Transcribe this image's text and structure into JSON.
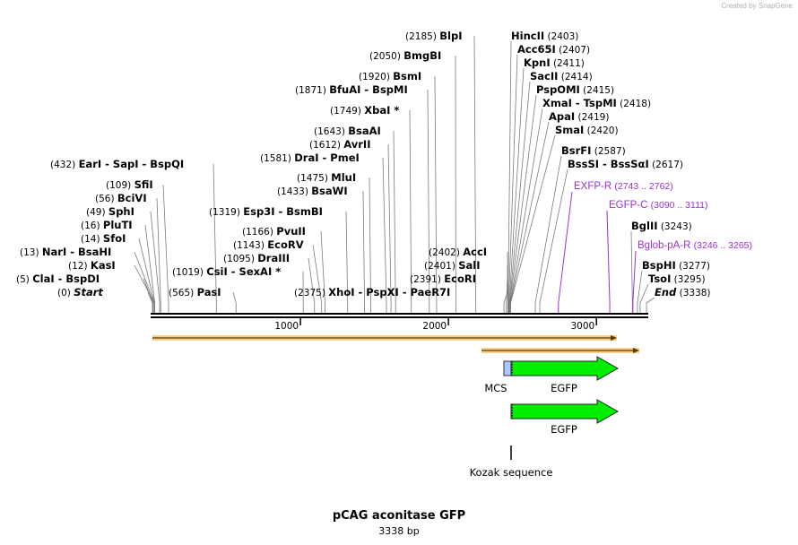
{
  "credit": "Created by SnapGene",
  "title": "pCAG aconitase GFP",
  "length_label": "3338 bp",
  "total_bp": 3338,
  "colors": {
    "feature": "#00ee00",
    "mcs": "#a8c8ff",
    "orf": "#f4a72a",
    "primer": "#9b30d0",
    "axis": "#000000"
  },
  "ticks": [
    {
      "bp": 1000,
      "label": "1000"
    },
    {
      "bp": 2000,
      "label": "2000"
    },
    {
      "bp": 3000,
      "label": "3000"
    }
  ],
  "sites_left": [
    {
      "pos": "(0)",
      "names": [
        "Start"
      ],
      "italic": true,
      "bp": 0
    },
    {
      "pos": "(5)",
      "names": [
        "ClaI",
        "BspDI"
      ],
      "bp": 5
    },
    {
      "pos": "(12)",
      "names": [
        "KasI"
      ],
      "bp": 12
    },
    {
      "pos": "(13)",
      "names": [
        "NarI",
        "BsaHI"
      ],
      "bp": 13
    },
    {
      "pos": "(14)",
      "names": [
        "SfoI"
      ],
      "bp": 14
    },
    {
      "pos": "(16)",
      "names": [
        "PluTI"
      ],
      "bp": 16
    },
    {
      "pos": "(49)",
      "names": [
        "SphI"
      ],
      "bp": 49
    },
    {
      "pos": "(56)",
      "names": [
        "BciVI"
      ],
      "bp": 56
    },
    {
      "pos": "(109)",
      "names": [
        "SfiI"
      ],
      "bp": 109
    },
    {
      "pos": "(432)",
      "names": [
        "EarI",
        "SapI",
        "BspQI"
      ],
      "bp": 432
    }
  ],
  "sites_mid": [
    {
      "pos": "(565)",
      "names": [
        "PasI"
      ],
      "bp": 565
    },
    {
      "pos": "(1019)",
      "names": [
        "CsiI",
        "SexAI *"
      ],
      "bp": 1019
    },
    {
      "pos": "(1095)",
      "names": [
        "DraIII"
      ],
      "bp": 1095
    },
    {
      "pos": "(1143)",
      "names": [
        "EcoRV"
      ],
      "bp": 1143
    },
    {
      "pos": "(1166)",
      "names": [
        "PvuII"
      ],
      "bp": 1166
    },
    {
      "pos": "(1319)",
      "names": [
        "Esp3I",
        "BsmBI"
      ],
      "bp": 1319
    },
    {
      "pos": "(1433)",
      "names": [
        "BsaWI"
      ],
      "bp": 1433
    },
    {
      "pos": "(1475)",
      "names": [
        "MluI"
      ],
      "bp": 1475
    },
    {
      "pos": "(1581)",
      "names": [
        "DraI",
        "PmeI"
      ],
      "bp": 1581
    },
    {
      "pos": "(1612)",
      "names": [
        "AvrII"
      ],
      "bp": 1612
    },
    {
      "pos": "(1643)",
      "names": [
        "BsaAI"
      ],
      "bp": 1643
    },
    {
      "pos": "(1749)",
      "names": [
        "XbaI *"
      ],
      "bp": 1749
    },
    {
      "pos": "(1871)",
      "names": [
        "BfuAI",
        "BspMI"
      ],
      "bp": 1871
    },
    {
      "pos": "(1920)",
      "names": [
        "BsmI"
      ],
      "bp": 1920
    },
    {
      "pos": "(2050)",
      "names": [
        "BmgBI"
      ],
      "bp": 2050
    },
    {
      "pos": "(2185)",
      "names": [
        "BlpI"
      ],
      "bp": 2185
    },
    {
      "pos": "(2375)",
      "names": [
        "XhoI",
        "PspXI",
        "PaeR7I"
      ],
      "bp": 2375
    },
    {
      "pos": "(2391)",
      "names": [
        "EcoRI"
      ],
      "bp": 2391
    },
    {
      "pos": "(2401)",
      "names": [
        "SalI"
      ],
      "bp": 2401
    },
    {
      "pos": "(2402)",
      "names": [
        "AccI"
      ],
      "bp": 2402
    }
  ],
  "sites_right": [
    {
      "pos": "(2403)",
      "names": [
        "HincII"
      ],
      "bp": 2403
    },
    {
      "pos": "(2407)",
      "names": [
        "Acc65I"
      ],
      "bp": 2407
    },
    {
      "pos": "(2411)",
      "names": [
        "KpnI"
      ],
      "bp": 2411
    },
    {
      "pos": "(2414)",
      "names": [
        "SacII"
      ],
      "bp": 2414
    },
    {
      "pos": "(2415)",
      "names": [
        "PspOMI"
      ],
      "bp": 2415
    },
    {
      "pos": "(2418)",
      "names": [
        "XmaI",
        "TspMI"
      ],
      "bp": 2418
    },
    {
      "pos": "(2419)",
      "names": [
        "ApaI"
      ],
      "bp": 2419
    },
    {
      "pos": "(2420)",
      "names": [
        "SmaI"
      ],
      "bp": 2420
    },
    {
      "pos": "(2587)",
      "names": [
        "BsrFI"
      ],
      "bp": 2587
    },
    {
      "pos": "(2617)",
      "names": [
        "BssSI",
        "BssSαI"
      ],
      "bp": 2617
    },
    {
      "pos": "(3243)",
      "names": [
        "BglII"
      ],
      "bp": 3243
    },
    {
      "pos": "(3277)",
      "names": [
        "BspHI"
      ],
      "bp": 3277
    },
    {
      "pos": "(3295)",
      "names": [
        "TsoI"
      ],
      "bp": 3295
    },
    {
      "pos": "(3338)",
      "names": [
        "End"
      ],
      "italic": true,
      "bp": 3338
    }
  ],
  "primers": [
    {
      "name": "EXFP-R",
      "range": "(2743 .. 2762)",
      "bp": 2743
    },
    {
      "name": "EGFP-C",
      "range": "(3090 .. 3111)",
      "bp": 3090
    },
    {
      "name": "Bglob-pA-R",
      "range": "(3246 .. 3265)",
      "bp": 3246
    }
  ],
  "features": {
    "mcs_label": "MCS",
    "egfp_label_1": "EGFP",
    "egfp_label_2": "EGFP",
    "kozak_label": "Kozak sequence"
  }
}
